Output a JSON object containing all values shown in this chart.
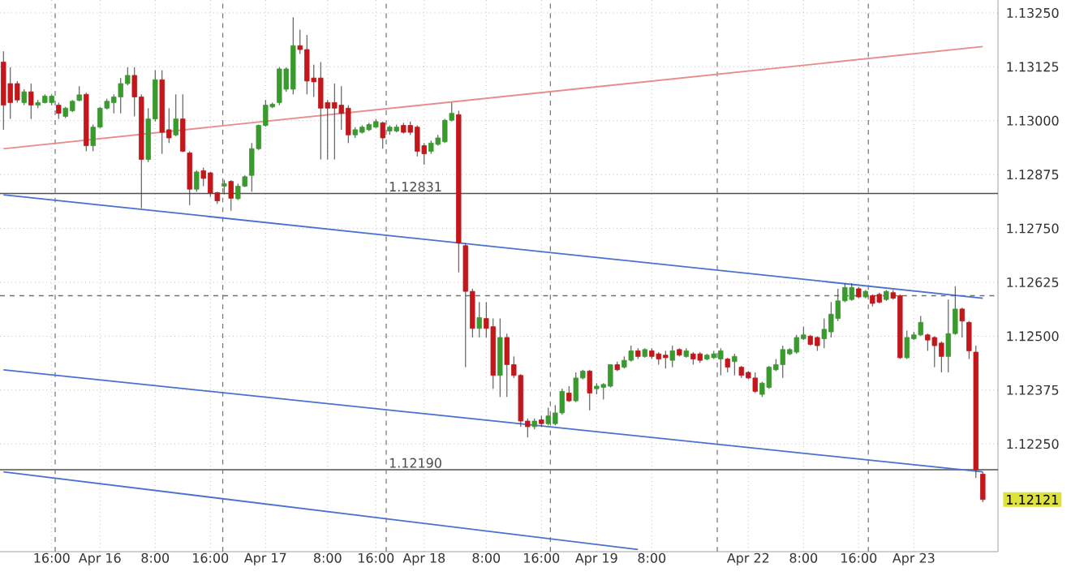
{
  "chart_data": {
    "type": "candlestick",
    "categories": [
      null,
      null,
      null,
      null,
      null,
      null,
      null,
      "16:00",
      null,
      null,
      null,
      null,
      null,
      null,
      "Apr 16",
      null,
      null,
      null,
      null,
      null,
      null,
      null,
      "8:00",
      null,
      null,
      null,
      null,
      null,
      null,
      null,
      "16:00",
      null,
      null,
      null,
      null,
      null,
      null,
      null,
      "Apr 17",
      null,
      null,
      null,
      null,
      null,
      null,
      null,
      null,
      "8:00",
      null,
      null,
      null,
      null,
      null,
      null,
      "16:00",
      null,
      null,
      null,
      null,
      null,
      null,
      "Apr 18",
      null,
      null,
      null,
      null,
      null,
      null,
      null,
      null,
      "8:00",
      null,
      null,
      null,
      null,
      null,
      null,
      null,
      "16:00",
      null,
      null,
      null,
      null,
      null,
      null,
      null,
      "Apr 19",
      null,
      null,
      null,
      null,
      null,
      null,
      null,
      "8:00",
      null,
      null,
      null,
      null,
      null,
      null,
      null,
      null,
      null,
      null,
      null,
      null,
      null,
      "Apr 22",
      null,
      null,
      null,
      null,
      null,
      null,
      null,
      "8:00",
      null,
      null,
      null,
      null,
      null,
      null,
      null,
      "16:00",
      null,
      null,
      null,
      null,
      null,
      null,
      null,
      "Apr 23",
      null,
      null,
      null,
      null,
      null,
      null,
      null,
      null,
      null,
      null
    ],
    "ohlc": [
      [
        1.13136,
        1.13161,
        1.12979,
        1.13036
      ],
      [
        1.13086,
        1.13124,
        1.13004,
        1.13042
      ],
      [
        1.13086,
        1.13092,
        1.13042,
        1.13048
      ],
      [
        1.13042,
        1.13073,
        1.13036,
        1.13067
      ],
      [
        1.13067,
        1.13086,
        1.13004,
        1.13036
      ],
      [
        1.13036,
        1.13048,
        1.13029,
        1.13042
      ],
      [
        1.13042,
        1.13061,
        1.1304,
        1.13057
      ],
      [
        1.13042,
        1.13061,
        1.13036,
        1.13057
      ],
      [
        1.13036,
        1.13042,
        1.13004,
        1.13017
      ],
      [
        1.1301,
        1.13032,
        1.13006,
        1.13029
      ],
      [
        1.13023,
        1.13048,
        1.1302,
        1.13045
      ],
      [
        1.13047,
        1.1308,
        1.13045,
        1.1306
      ],
      [
        1.13061,
        1.13065,
        1.12929,
        1.12942
      ],
      [
        1.12942,
        1.12991,
        1.12929,
        1.12985
      ],
      [
        1.12985,
        1.13032,
        1.12983,
        1.13029
      ],
      [
        1.13029,
        1.13051,
        1.13026,
        1.13045
      ],
      [
        1.13042,
        1.13061,
        1.13017,
        1.13055
      ],
      [
        1.13055,
        1.13099,
        1.13017,
        1.13086
      ],
      [
        1.13086,
        1.13124,
        1.13082,
        1.13105
      ],
      [
        1.13105,
        1.13124,
        1.1301,
        1.13055
      ],
      [
        1.13055,
        1.13061,
        1.12797,
        1.1291
      ],
      [
        1.1291,
        1.13029,
        1.12904,
        1.13004
      ],
      [
        1.13004,
        1.13117,
        1.12998,
        1.13095
      ],
      [
        1.13095,
        1.13117,
        1.12923,
        1.12973
      ],
      [
        1.12979,
        1.13029,
        1.12948,
        1.1296
      ],
      [
        1.12967,
        1.13061,
        1.12964,
        1.13004
      ],
      [
        1.13004,
        1.13061,
        1.12927,
        1.12929
      ],
      [
        1.12925,
        1.12929,
        1.12804,
        1.12841
      ],
      [
        1.12841,
        1.12885,
        1.12835,
        1.12881
      ],
      [
        1.12884,
        1.12891,
        1.12848,
        1.12866
      ],
      [
        1.12879,
        1.12881,
        1.12823,
        1.12832
      ],
      [
        1.12833,
        1.12835,
        1.12807,
        1.12814
      ],
      [
        1.12848,
        1.12863,
        1.12829,
        1.12854
      ],
      [
        1.12859,
        1.12862,
        1.12791,
        1.1282
      ],
      [
        1.12819,
        1.12854,
        1.12816,
        1.12848
      ],
      [
        1.12848,
        1.12873,
        1.12846,
        1.1287
      ],
      [
        1.12873,
        1.12948,
        1.12835,
        1.12935
      ],
      [
        1.12935,
        1.12991,
        1.12932,
        1.12989
      ],
      [
        1.12989,
        1.13048,
        1.12986,
        1.13036
      ],
      [
        1.13032,
        1.13042,
        1.13029,
        1.13038
      ],
      [
        1.13042,
        1.13124,
        1.13036,
        1.1312
      ],
      [
        1.13073,
        1.13124,
        1.13067,
        1.1312
      ],
      [
        1.13073,
        1.1324,
        1.13061,
        1.13174
      ],
      [
        1.13174,
        1.13211,
        1.13155,
        1.13165
      ],
      [
        1.13165,
        1.13199,
        1.13061,
        1.13092
      ],
      [
        1.13099,
        1.1313,
        1.13055,
        1.1309
      ],
      [
        1.13099,
        1.13136,
        1.1291,
        1.13029
      ],
      [
        1.13042,
        1.13048,
        1.1291,
        1.13029
      ],
      [
        1.13042,
        1.13086,
        1.1291,
        1.13029
      ],
      [
        1.13036,
        1.1308,
        1.12979,
        1.13017
      ],
      [
        1.13029,
        1.13036,
        1.12948,
        1.12967
      ],
      [
        1.12967,
        1.12985,
        1.1296,
        1.12979
      ],
      [
        1.12973,
        1.12989,
        1.1297,
        1.12985
      ],
      [
        1.12979,
        1.12995,
        1.12976,
        1.12991
      ],
      [
        1.12985,
        1.13004,
        1.12983,
        1.12998
      ],
      [
        1.12995,
        1.12998,
        1.12935,
        1.1296
      ],
      [
        1.12976,
        1.12989,
        1.12967,
        1.12985
      ],
      [
        1.12976,
        1.12991,
        1.12973,
        1.12985
      ],
      [
        1.12989,
        1.12995,
        1.1297,
        1.12973
      ],
      [
        1.12989,
        1.12998,
        1.12967,
        1.12973
      ],
      [
        1.12985,
        1.12989,
        1.12917,
        1.12929
      ],
      [
        1.12942,
        1.12948,
        1.12898,
        1.12923
      ],
      [
        1.12929,
        1.12954,
        1.12923,
        1.12948
      ],
      [
        1.12945,
        1.12967,
        1.12942,
        1.1296
      ],
      [
        1.12951,
        1.13004,
        1.12948,
        1.13001
      ],
      [
        1.13001,
        1.13042,
        1.12998,
        1.13017
      ],
      [
        1.13014,
        1.13023,
        1.12648,
        1.12716
      ],
      [
        1.1271,
        1.12716,
        1.12428,
        1.12604
      ],
      [
        1.12604,
        1.1261,
        1.12497,
        1.12518
      ],
      [
        1.12518,
        1.12579,
        1.12497,
        1.12543
      ],
      [
        1.12541,
        1.12579,
        1.12497,
        1.12518
      ],
      [
        1.12522,
        1.12541,
        1.12378,
        1.12409
      ],
      [
        1.12409,
        1.12541,
        1.12359,
        1.12497
      ],
      [
        1.12497,
        1.12506,
        1.12359,
        1.12434
      ],
      [
        1.12434,
        1.12453,
        1.12403,
        1.12409
      ],
      [
        1.12409,
        1.12412,
        1.1229,
        1.12303
      ],
      [
        1.12303,
        1.12309,
        1.12265,
        1.1229
      ],
      [
        1.1229,
        1.12309,
        1.12284,
        1.12303
      ],
      [
        1.12306,
        1.12315,
        1.1229,
        1.12297
      ],
      [
        1.12297,
        1.12334,
        1.12293,
        1.12315
      ],
      [
        1.12297,
        1.1234,
        1.12293,
        1.12322
      ],
      [
        1.12322,
        1.12378,
        1.12318,
        1.12372
      ],
      [
        1.12368,
        1.12384,
        1.12347,
        1.1235
      ],
      [
        1.1235,
        1.12416,
        1.12347,
        1.12403
      ],
      [
        1.12403,
        1.12422,
        1.124,
        1.12419
      ],
      [
        1.12419,
        1.12422,
        1.12328,
        1.12368
      ],
      [
        1.12378,
        1.12391,
        1.12365,
        1.12384
      ],
      [
        1.12381,
        1.12391,
        1.12353,
        1.12388
      ],
      [
        1.12384,
        1.12434,
        1.12381,
        1.12434
      ],
      [
        1.12434,
        1.12441,
        1.12419,
        1.12422
      ],
      [
        1.12428,
        1.12453,
        1.12425,
        1.12444
      ],
      [
        1.12444,
        1.12478,
        1.12441,
        1.12466
      ],
      [
        1.12466,
        1.12472,
        1.12447,
        1.12453
      ],
      [
        1.12453,
        1.12472,
        1.1245,
        1.12469
      ],
      [
        1.12466,
        1.12472,
        1.12447,
        1.12453
      ],
      [
        1.12459,
        1.12463,
        1.12434,
        1.12447
      ],
      [
        1.12456,
        1.12466,
        1.12425,
        1.1245
      ],
      [
        1.12444,
        1.12478,
        1.12428,
        1.12466
      ],
      [
        1.12469,
        1.12472,
        1.12453,
        1.12456
      ],
      [
        1.12453,
        1.12472,
        1.1245,
        1.12466
      ],
      [
        1.12459,
        1.12463,
        1.12434,
        1.12447
      ],
      [
        1.12459,
        1.12463,
        1.12438,
        1.12444
      ],
      [
        1.12447,
        1.12459,
        1.12444,
        1.12456
      ],
      [
        1.1245,
        1.12466,
        1.12447,
        1.12459
      ],
      [
        1.12447,
        1.12472,
        1.12409,
        1.12466
      ],
      [
        1.12447,
        1.1245,
        1.12416,
        1.12428
      ],
      [
        1.12441,
        1.12459,
        1.12409,
        1.12453
      ],
      [
        1.12428,
        1.12431,
        1.12403,
        1.12409
      ],
      [
        1.12416,
        1.12419,
        1.124,
        1.12403
      ],
      [
        1.12403,
        1.12416,
        1.12368,
        1.12372
      ],
      [
        1.12365,
        1.12394,
        1.12359,
        1.12391
      ],
      [
        1.12381,
        1.12431,
        1.12378,
        1.12428
      ],
      [
        1.12422,
        1.12447,
        1.12419,
        1.12434
      ],
      [
        1.12434,
        1.12478,
        1.12403,
        1.12469
      ],
      [
        1.12459,
        1.12472,
        1.12456,
        1.12469
      ],
      [
        1.12463,
        1.12503,
        1.12459,
        1.12497
      ],
      [
        1.12494,
        1.12522,
        1.12491,
        1.12503
      ],
      [
        1.125,
        1.12503,
        1.12478,
        1.12481
      ],
      [
        1.12497,
        1.125,
        1.12466,
        1.12478
      ],
      [
        1.12494,
        1.12541,
        1.12472,
        1.12516
      ],
      [
        1.1251,
        1.12579,
        1.12497,
        1.12551
      ],
      [
        1.12541,
        1.1261,
        1.12535,
        1.12582
      ],
      [
        1.12582,
        1.12623,
        1.12579,
        1.12613
      ],
      [
        1.12585,
        1.12623,
        1.12582,
        1.12613
      ],
      [
        1.1261,
        1.12614,
        1.12588,
        1.12591
      ],
      [
        1.12591,
        1.12607,
        1.12588,
        1.12604
      ],
      [
        1.12594,
        1.12597,
        1.12569,
        1.12576
      ],
      [
        1.12597,
        1.12601,
        1.12576,
        1.12579
      ],
      [
        1.12585,
        1.12607,
        1.12582,
        1.12604
      ],
      [
        1.12601,
        1.12607,
        1.12585,
        1.12588
      ],
      [
        1.12594,
        1.12597,
        1.12447,
        1.1245
      ],
      [
        1.1245,
        1.12513,
        1.12447,
        1.12497
      ],
      [
        1.12494,
        1.1251,
        1.12491,
        1.12503
      ],
      [
        1.12503,
        1.12547,
        1.125,
        1.12532
      ],
      [
        1.12503,
        1.12506,
        1.12466,
        1.12491
      ],
      [
        1.12497,
        1.125,
        1.12428,
        1.12478
      ],
      [
        1.12484,
        1.12488,
        1.12416,
        1.12453
      ],
      [
        1.12453,
        1.12585,
        1.12416,
        1.12506
      ],
      [
        1.12506,
        1.12616,
        1.12503,
        1.12563
      ],
      [
        1.12563,
        1.12566,
        1.12497,
        1.12535
      ],
      [
        1.12532,
        1.12535,
        1.12447,
        1.12466
      ],
      [
        1.12463,
        1.12478,
        1.12171,
        1.1219
      ],
      [
        1.1218,
        1.12185,
        1.12115,
        1.12121
      ]
    ],
    "colors": [
      "#c2181c",
      "#c2181c",
      "#c2181c",
      "#3a9a2e",
      "#c2181c",
      "#3a9a2e",
      "#3a9a2e",
      "#3a9a2e",
      "#c2181c",
      "#3a9a2e",
      "#3a9a2e",
      "#3a9a2e",
      "#c2181c",
      "#3a9a2e",
      "#3a9a2e",
      "#3a9a2e",
      "#3a9a2e",
      "#3a9a2e",
      "#3a9a2e",
      "#c2181c",
      "#c2181c",
      "#3a9a2e",
      "#3a9a2e",
      "#c2181c",
      "#c2181c",
      "#3a9a2e",
      "#c2181c",
      "#c2181c",
      "#3a9a2e",
      "#c2181c",
      "#c2181c",
      "#c2181c",
      "#3a9a2e",
      "#c2181c",
      "#3a9a2e",
      "#3a9a2e",
      "#3a9a2e",
      "#3a9a2e",
      "#3a9a2e",
      "#3a9a2e",
      "#3a9a2e",
      "#3a9a2e",
      "#3a9a2e",
      "#c2181c",
      "#c2181c",
      "#c2181c",
      "#c2181c",
      "#c2181c",
      "#c2181c",
      "#c2181c",
      "#c2181c",
      "#3a9a2e",
      "#3a9a2e",
      "#3a9a2e",
      "#3a9a2e",
      "#c2181c",
      "#3a9a2e",
      "#3a9a2e",
      "#c2181c",
      "#c2181c",
      "#c2181c",
      "#c2181c",
      "#3a9a2e",
      "#3a9a2e",
      "#3a9a2e",
      "#3a9a2e",
      "#c2181c",
      "#c2181c",
      "#c2181c",
      "#3a9a2e",
      "#c2181c",
      "#c2181c",
      "#3a9a2e",
      "#c2181c",
      "#c2181c",
      "#c2181c",
      "#c2181c",
      "#3a9a2e",
      "#c2181c",
      "#3a9a2e",
      "#3a9a2e",
      "#3a9a2e",
      "#c2181c",
      "#3a9a2e",
      "#3a9a2e",
      "#c2181c",
      "#3a9a2e",
      "#3a9a2e",
      "#3a9a2e",
      "#c2181c",
      "#3a9a2e",
      "#3a9a2e",
      "#c2181c",
      "#3a9a2e",
      "#c2181c",
      "#c2181c",
      "#c2181c",
      "#3a9a2e",
      "#c2181c",
      "#3a9a2e",
      "#c2181c",
      "#c2181c",
      "#3a9a2e",
      "#3a9a2e",
      "#3a9a2e",
      "#c2181c",
      "#3a9a2e",
      "#c2181c",
      "#c2181c",
      "#c2181c",
      "#3a9a2e",
      "#3a9a2e",
      "#3a9a2e",
      "#3a9a2e",
      "#3a9a2e",
      "#3a9a2e",
      "#3a9a2e",
      "#c2181c",
      "#c2181c",
      "#3a9a2e",
      "#3a9a2e",
      "#3a9a2e",
      "#3a9a2e",
      "#3a9a2e",
      "#c2181c",
      "#3a9a2e",
      "#c2181c",
      "#c2181c",
      "#3a9a2e",
      "#c2181c",
      "#c2181c",
      "#3a9a2e",
      "#3a9a2e",
      "#3a9a2e",
      "#c2181c",
      "#c2181c",
      "#c2181c",
      "#3a9a2e",
      "#3a9a2e",
      "#c2181c",
      "#c2181c",
      "#c2181c",
      "#c2181c"
    ],
    "series": [
      {
        "type": "line",
        "color": "#e88c8c",
        "values": [
          1.12935,
          null,
          null,
          null,
          null,
          null,
          null,
          null,
          null,
          null,
          null,
          null,
          null,
          null,
          null,
          null,
          null,
          null,
          null,
          null,
          null,
          null,
          null,
          null,
          null,
          null,
          null,
          null,
          null,
          null,
          null,
          null,
          null,
          null,
          null,
          null,
          null,
          null,
          null,
          null,
          null,
          null,
          null,
          null,
          null,
          null,
          null,
          null,
          null,
          null,
          null,
          null,
          null,
          null,
          null,
          null,
          null,
          null,
          null,
          null,
          null,
          null,
          null,
          null,
          null,
          null,
          null,
          null,
          null,
          null,
          null,
          null,
          null,
          null,
          null,
          null,
          null,
          null,
          null,
          null,
          null,
          null,
          null,
          null,
          null,
          null,
          null,
          null,
          null,
          null,
          null,
          null,
          null,
          null,
          null,
          null,
          null,
          null,
          null,
          null,
          null,
          null,
          null,
          null,
          null,
          null,
          null,
          null,
          null,
          null,
          null,
          null,
          null,
          null,
          null,
          null,
          null,
          null,
          null,
          null,
          null,
          null,
          null,
          null,
          null,
          null,
          null,
          null,
          null,
          null,
          null,
          null,
          null,
          null,
          null,
          null,
          null,
          null,
          null,
          null,
          null,
          null,
          1.13172
        ]
      },
      {
        "type": "line",
        "color": "#4a70d0",
        "values": [
          1.12828,
          null,
          null,
          null,
          null,
          null,
          null,
          null,
          null,
          null,
          null,
          null,
          null,
          null,
          null,
          null,
          null,
          null,
          null,
          null,
          null,
          null,
          null,
          null,
          null,
          null,
          null,
          null,
          null,
          null,
          null,
          null,
          null,
          null,
          null,
          null,
          null,
          null,
          null,
          null,
          null,
          null,
          null,
          null,
          null,
          null,
          null,
          null,
          null,
          null,
          null,
          null,
          null,
          null,
          null,
          null,
          null,
          null,
          null,
          null,
          null,
          null,
          null,
          null,
          null,
          null,
          null,
          null,
          null,
          null,
          null,
          null,
          null,
          null,
          null,
          null,
          null,
          null,
          null,
          null,
          null,
          null,
          null,
          null,
          null,
          null,
          null,
          null,
          null,
          null,
          null,
          null,
          null,
          null,
          null,
          null,
          null,
          null,
          null,
          null,
          null,
          null,
          null,
          null,
          null,
          null,
          null,
          null,
          null,
          null,
          null,
          null,
          null,
          null,
          null,
          null,
          null,
          null,
          null,
          null,
          null,
          null,
          null,
          null,
          null,
          null,
          null,
          null,
          null,
          null,
          null,
          null,
          null,
          null,
          null,
          null,
          null,
          null,
          null,
          null,
          null,
          null,
          1.12588
        ]
      },
      {
        "type": "line",
        "color": "#4a70d0",
        "values": [
          1.12422,
          null,
          null,
          null,
          null,
          null,
          null,
          null,
          null,
          null,
          null,
          null,
          null,
          null,
          null,
          null,
          null,
          null,
          null,
          null,
          null,
          null,
          null,
          null,
          null,
          null,
          null,
          null,
          null,
          null,
          null,
          null,
          null,
          null,
          null,
          null,
          null,
          null,
          null,
          null,
          null,
          null,
          null,
          null,
          null,
          null,
          null,
          null,
          null,
          null,
          null,
          null,
          null,
          null,
          null,
          null,
          null,
          null,
          null,
          null,
          null,
          null,
          null,
          null,
          null,
          null,
          null,
          null,
          null,
          null,
          null,
          null,
          null,
          null,
          null,
          null,
          null,
          null,
          null,
          null,
          null,
          null,
          null,
          null,
          null,
          null,
          null,
          null,
          null,
          null,
          null,
          null,
          null,
          null,
          null,
          null,
          null,
          null,
          null,
          null,
          null,
          null,
          null,
          null,
          null,
          null,
          null,
          null,
          null,
          null,
          null,
          null,
          null,
          null,
          null,
          null,
          null,
          null,
          null,
          null,
          null,
          null,
          null,
          null,
          null,
          null,
          null,
          null,
          null,
          null,
          null,
          null,
          null,
          null,
          null,
          null,
          null,
          null,
          null,
          null,
          null,
          null,
          1.12185
        ]
      },
      {
        "type": "line",
        "color": "#4a70d0",
        "values": [
          1.12185,
          null,
          null,
          null,
          null,
          null,
          null,
          null,
          null,
          null,
          null,
          null,
          null,
          null,
          null,
          null,
          null,
          null,
          null,
          null,
          null,
          null,
          null,
          null,
          null,
          null,
          null,
          null,
          null,
          null,
          null,
          null,
          null,
          null,
          null,
          null,
          null,
          null,
          null,
          null,
          null,
          null,
          null,
          null,
          null,
          null,
          null,
          null,
          null,
          null,
          null,
          null,
          null,
          null,
          null,
          null,
          null,
          null,
          null,
          null,
          null,
          null,
          null,
          null,
          null,
          null,
          null,
          null,
          null,
          null,
          null,
          null,
          null,
          null,
          null,
          null,
          null,
          null,
          null,
          null,
          null,
          null,
          null,
          null,
          null,
          null,
          null,
          null,
          null,
          null,
          null,
          null,
          1.12005,
          null,
          null,
          null,
          null,
          null,
          null,
          null,
          null,
          null,
          null,
          null,
          null,
          null,
          null,
          null,
          null,
          null,
          null,
          null,
          null,
          null,
          null,
          null,
          null,
          null,
          null,
          null,
          null,
          null,
          null,
          null,
          null,
          null,
          null,
          null,
          null,
          null,
          null,
          null,
          null,
          null,
          null,
          null,
          null,
          null,
          null,
          null,
          null,
          null,
          null
        ]
      }
    ],
    "ref_lines": [
      {
        "axis": "y",
        "value": 1.12831,
        "label": "1.12831",
        "color": "#505050"
      },
      {
        "axis": "y",
        "value": 1.1219,
        "label": "1.12190",
        "color": "#505050"
      },
      {
        "axis": "y",
        "value": 1.12594,
        "color": "#707070",
        "line_style": "dashed"
      }
    ],
    "annotations": [
      "1.12121"
    ],
    "ylim": [
      1.12,
      1.1328
    ],
    "yticks": [
      {
        "value": 1.1225,
        "label": "1.12250"
      },
      {
        "value": 1.12375,
        "label": "1.12375"
      },
      {
        "value": 1.125,
        "label": "1.12500"
      },
      {
        "value": 1.12625,
        "label": "1.12625"
      },
      {
        "value": 1.1275,
        "label": "1.12750"
      },
      {
        "value": 1.12875,
        "label": "1.12875"
      },
      {
        "value": 1.13,
        "label": "1.13000"
      },
      {
        "value": 1.13125,
        "label": "1.13125"
      },
      {
        "value": 1.1325,
        "label": "1.13250"
      }
    ],
    "grid": true
  }
}
